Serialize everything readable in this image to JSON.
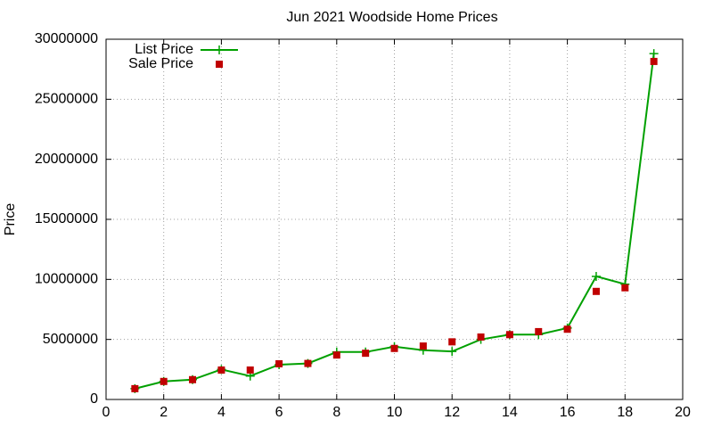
{
  "chart_data": {
    "type": "line",
    "title": "Jun 2021 Woodside Home Prices",
    "y_label": "Price",
    "x": [
      1,
      2,
      3,
      4,
      5,
      6,
      7,
      8,
      9,
      10,
      11,
      12,
      13,
      14,
      15,
      16,
      17,
      18,
      19
    ],
    "series": [
      {
        "name": "List Price",
        "color": "#00a000",
        "lines": true,
        "values": [
          900000,
          1500000,
          1650000,
          2500000,
          1950000,
          2900000,
          3000000,
          3950000,
          3950000,
          4400000,
          4100000,
          4000000,
          5000000,
          5400000,
          5400000,
          5950000,
          10250000,
          9600000,
          28800000
        ]
      },
      {
        "name": "Sale Price",
        "color": "#c00000",
        "lines": false,
        "values": [
          900000,
          1500000,
          1650000,
          2450000,
          2450000,
          2970000,
          3000000,
          3700000,
          3850000,
          4250000,
          4450000,
          4800000,
          5200000,
          5400000,
          5650000,
          5850000,
          9000000,
          9300000,
          28150000
        ]
      }
    ],
    "xlim": [
      0,
      20
    ],
    "xticks": [
      0,
      2,
      4,
      6,
      8,
      10,
      12,
      14,
      16,
      18,
      20
    ],
    "ylim": [
      0,
      30000000
    ],
    "yticks": [
      0,
      5000000,
      10000000,
      15000000,
      20000000,
      25000000,
      30000000
    ],
    "grid": true,
    "legend": "top-left"
  }
}
